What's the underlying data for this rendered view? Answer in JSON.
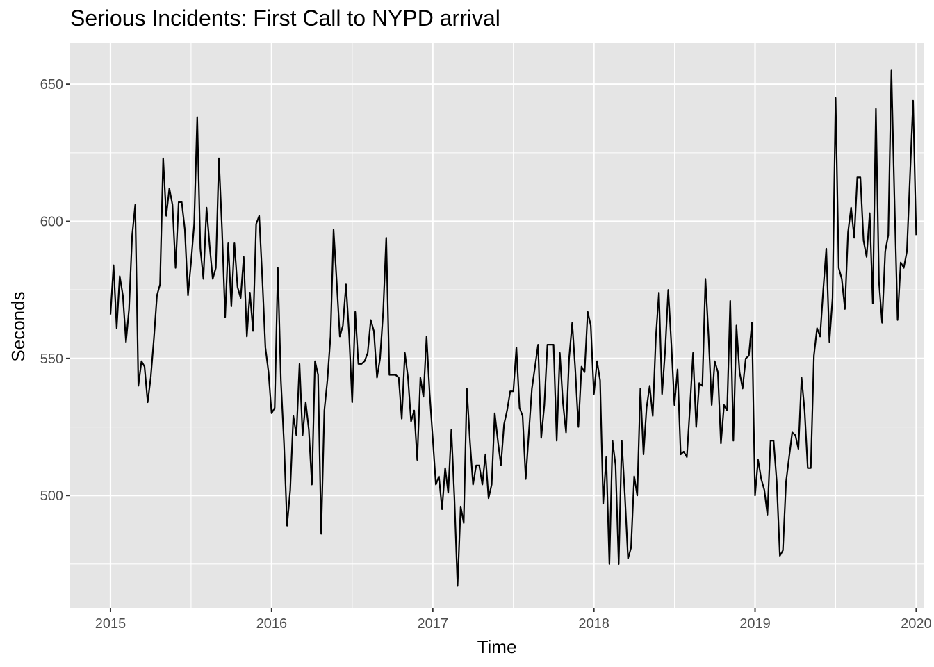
{
  "chart_data": {
    "type": "line",
    "title": "Serious Incidents: First Call to NYPD arrival",
    "xlabel": "Time",
    "ylabel": "Seconds",
    "xlim": [
      2014.75,
      2020.05
    ],
    "ylim": [
      459,
      665
    ],
    "x_ticks": [
      2015,
      2016,
      2017,
      2018,
      2019,
      2020
    ],
    "y_ticks": [
      500,
      550,
      600,
      650
    ],
    "grid": true,
    "background": "#e5e5e5",
    "grid_color": "#ffffff",
    "line_color": "#000000",
    "series": [
      {
        "start": 2015,
        "step": 0.01923,
        "values": [
          566,
          584,
          561,
          580,
          573,
          556,
          568,
          595,
          606,
          540,
          549,
          547,
          534,
          543,
          557,
          573,
          577,
          623,
          602,
          612,
          606,
          583,
          607,
          607,
          597,
          573,
          585,
          599,
          638,
          590,
          579,
          605,
          591,
          579,
          583,
          623,
          597,
          565,
          592,
          569,
          592,
          576,
          572,
          587,
          558,
          574,
          560,
          599,
          602,
          579,
          554,
          545,
          530,
          532,
          583,
          542,
          519,
          489,
          502,
          529,
          522,
          548,
          522,
          534,
          524,
          504,
          549,
          544,
          486,
          531,
          542,
          558,
          597,
          578,
          558,
          562,
          577,
          559,
          534,
          567,
          548,
          548,
          549,
          552,
          564,
          560,
          543,
          550,
          567,
          594,
          544,
          544,
          544,
          543,
          528,
          552,
          543,
          527,
          531,
          513,
          543,
          536,
          558,
          537,
          521,
          504,
          507,
          495,
          510,
          501,
          524,
          499,
          467,
          496,
          490,
          539,
          520,
          504,
          511,
          511,
          504,
          515,
          499,
          504,
          530,
          520,
          511,
          526,
          531,
          538,
          538,
          554,
          532,
          529,
          506,
          523,
          539,
          547,
          555,
          521,
          533,
          555,
          555,
          555,
          520,
          552,
          534,
          523,
          550,
          563,
          546,
          525,
          547,
          545,
          567,
          562,
          537,
          549,
          542,
          497,
          514,
          475,
          520,
          511,
          475,
          520,
          500,
          477,
          481,
          507,
          500,
          539,
          515,
          532,
          540,
          529,
          558,
          574,
          537,
          553,
          575,
          555,
          533,
          546,
          515,
          516,
          514,
          532,
          552,
          525,
          541,
          540,
          579,
          558,
          533,
          549,
          545,
          519,
          533,
          531,
          571,
          520,
          562,
          545,
          539,
          550,
          551,
          563,
          500,
          513,
          506,
          502,
          493,
          520,
          520,
          505,
          478,
          480,
          505,
          514,
          523,
          522,
          517,
          543,
          531,
          510,
          510,
          551,
          561,
          558,
          575,
          590,
          556,
          572,
          645,
          583,
          579,
          568,
          596,
          605,
          594,
          616,
          616,
          593,
          587,
          603,
          570,
          641,
          578,
          563,
          589,
          595,
          655,
          608,
          564,
          585,
          583,
          589,
          616,
          644,
          595
        ]
      }
    ]
  }
}
